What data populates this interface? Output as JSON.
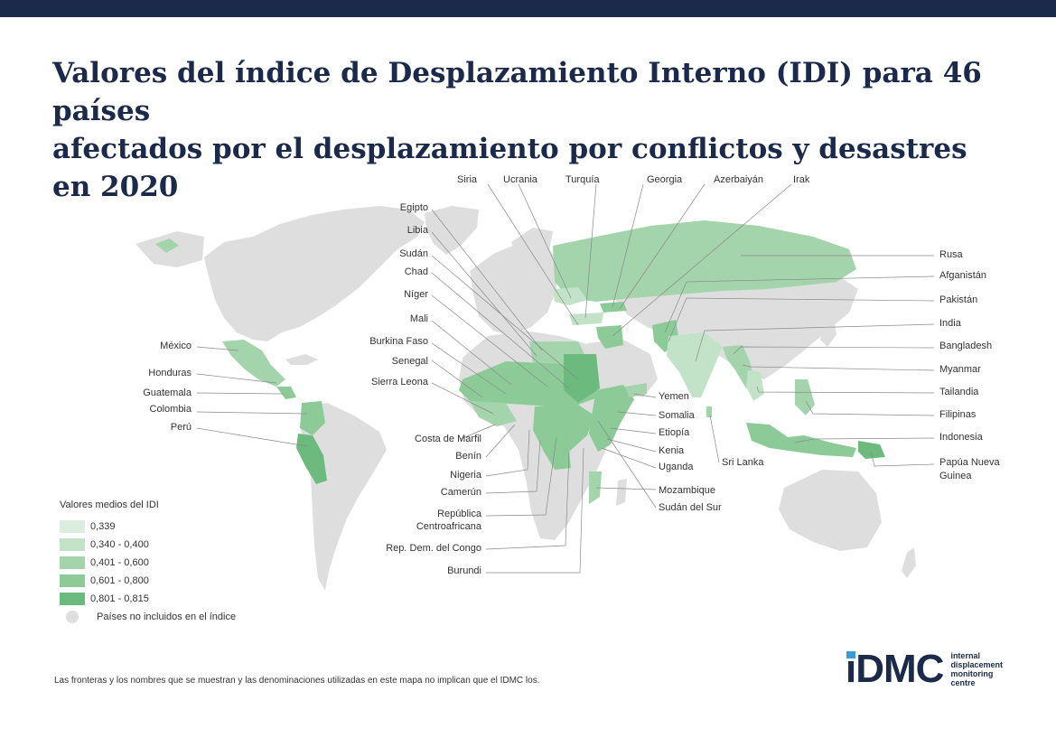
{
  "title": {
    "line1": "Valores del índice de Desplazamiento Interno (IDI) para 46 países",
    "line2": "afectados por el desplazamiento por conflictos y desastres en 2020"
  },
  "colors": {
    "header_bar": "#1b2a4a",
    "not_included": "#dedede",
    "c1": "#dceee0",
    "c2": "#c2e3c8",
    "c3": "#a3d4ab",
    "c4": "#8ccb97",
    "c5": "#6cba7e"
  },
  "legend": {
    "title": "Valores medios del IDI",
    "items": [
      {
        "label": "0,339",
        "color": "#dceee0"
      },
      {
        "label": "0,340 - 0,400",
        "color": "#c2e3c8"
      },
      {
        "label": "0,401 - 0,600",
        "color": "#a3d4ab"
      },
      {
        "label": "0,601 - 0,800",
        "color": "#8ccb97"
      },
      {
        "label": "0,801 - 0,815",
        "color": "#6cba7e"
      }
    ],
    "not_included": "Países no incluidos en el índice"
  },
  "labels": {
    "siria": "Siria",
    "ucrania": "Ucrania",
    "turquia": "Turquía",
    "georgia": "Georgia",
    "azerbaiyan": "Azerbaiyán",
    "irak": "Irak",
    "egipto": "Egipto",
    "libia": "Libia",
    "sudan": "Sudán",
    "chad": "Chad",
    "niger": "Níger",
    "mali": "Mali",
    "burkina_faso": "Burkina Faso",
    "senegal": "Senegal",
    "sierra_leona": "Sierra Leona",
    "mexico": "México",
    "honduras": "Honduras",
    "guatemala": "Guatemala",
    "colombia": "Colombia",
    "peru": "Perú",
    "costa_de_marfil": "Costa de Marfil",
    "benin": "Benín",
    "nigeria": "Nigeria",
    "camerun": "Camerún",
    "rca_1": "República",
    "rca_2": "Centroafricana",
    "rdc": "Rep. Dem. del Congo",
    "burundi": "Burundi",
    "yemen": "Yemen",
    "somalia": "Somalia",
    "etiopia": "Etiopía",
    "kenia": "Kenia",
    "uganda": "Uganda",
    "mozambique": "Mozambique",
    "sudan_del_sur": "Sudán del Sur",
    "sri_lanka": "Sri Lanka",
    "rusia": "Rusa",
    "afganistan": "Afganistán",
    "pakistan": "Pakistán",
    "india": "India",
    "bangladesh": "Bangladesh",
    "myanmar": "Myanmar",
    "tailandia": "Tailandia",
    "filipinas": "Filipinas",
    "indonesia": "Indonesia",
    "png_1": "Papúa Nueva",
    "png_2": "Guinea"
  },
  "footnote": "Las fronteras y los nombres que se muestran y las denominaciones utilizadas en este mapa no implican que el IDMC los.",
  "logo": {
    "mark": "iDMC",
    "line1": "internal",
    "line2": "displacement",
    "line3": "monitoring",
    "line4": "centre"
  }
}
